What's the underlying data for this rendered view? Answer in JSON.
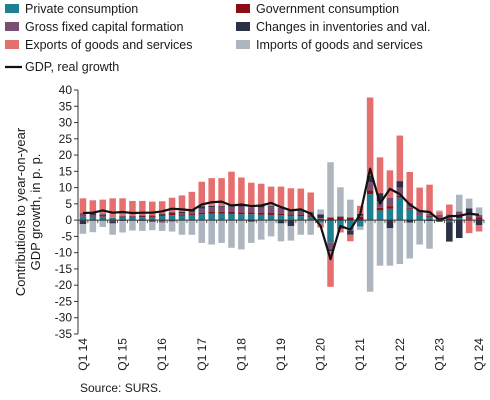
{
  "chart_data": {
    "type": "bar",
    "stacked": true,
    "ylabel": "Contributions to year-on-year GDP growth, in p. p.",
    "source": "Source: SURS.",
    "ylim": [
      -35,
      40
    ],
    "ytick_step": 5,
    "grid": false,
    "legend_placement": "top",
    "xtick_labels": [
      {
        "index": 0,
        "label": "Q1 14"
      },
      {
        "index": 4,
        "label": "Q1 15"
      },
      {
        "index": 8,
        "label": "Q1 16"
      },
      {
        "index": 12,
        "label": "Q1 17"
      },
      {
        "index": 16,
        "label": "Q1 18"
      },
      {
        "index": 20,
        "label": "Q1 19"
      },
      {
        "index": 24,
        "label": "Q1 20"
      },
      {
        "index": 28,
        "label": "Q1 21"
      },
      {
        "index": 32,
        "label": "Q1 22"
      },
      {
        "index": 36,
        "label": "Q1 23"
      },
      {
        "index": 40,
        "label": "Q1 24"
      }
    ],
    "categories": [
      "Q1 14",
      "Q2 14",
      "Q3 14",
      "Q4 14",
      "Q1 15",
      "Q2 15",
      "Q3 15",
      "Q4 15",
      "Q1 16",
      "Q2 16",
      "Q3 16",
      "Q4 16",
      "Q1 17",
      "Q2 17",
      "Q3 17",
      "Q4 17",
      "Q1 18",
      "Q2 18",
      "Q3 18",
      "Q4 18",
      "Q1 19",
      "Q2 19",
      "Q3 19",
      "Q4 19",
      "Q1 20",
      "Q2 20",
      "Q3 20",
      "Q4 20",
      "Q1 21",
      "Q2 21",
      "Q3 21",
      "Q4 21",
      "Q1 22",
      "Q2 22",
      "Q3 22",
      "Q4 22",
      "Q1 23",
      "Q2 23",
      "Q3 23",
      "Q4 23",
      "Q1 24"
    ],
    "series": [
      {
        "name": "Private consumption",
        "color": "#1f7f93",
        "values": [
          1.0,
          0.8,
          0.8,
          0.7,
          0.8,
          0.8,
          0.9,
          1.0,
          1.3,
          1.5,
          1.4,
          1.6,
          1.8,
          2.0,
          2.0,
          1.9,
          1.8,
          1.8,
          1.7,
          1.6,
          1.5,
          1.3,
          1.2,
          1.0,
          -0.8,
          -6.8,
          -2.0,
          -3.0,
          -2.0,
          8.0,
          3.0,
          3.5,
          7.0,
          3.5,
          1.5,
          1.0,
          0.2,
          -0.6,
          0.6,
          0.4,
          0.2
        ]
      },
      {
        "name": "Government consumption",
        "color": "#8b0e12",
        "values": [
          -0.2,
          -0.2,
          -0.1,
          0.0,
          0.1,
          0.1,
          0.2,
          0.3,
          0.4,
          0.4,
          0.4,
          0.4,
          0.5,
          0.5,
          0.6,
          0.6,
          0.6,
          0.6,
          0.6,
          0.6,
          0.5,
          0.5,
          0.5,
          0.5,
          0.4,
          0.8,
          0.8,
          0.8,
          1.0,
          1.2,
          0.8,
          0.8,
          0.5,
          0.3,
          0.2,
          0.3,
          0.5,
          0.6,
          0.6,
          0.5,
          0.6
        ]
      },
      {
        "name": "Gross fixed capital formation",
        "color": "#7b4f6f",
        "values": [
          1.2,
          0.8,
          0.5,
          -0.4,
          -0.3,
          -0.2,
          -0.3,
          -0.6,
          -0.8,
          -0.5,
          0.3,
          0.6,
          1.2,
          1.5,
          1.5,
          1.7,
          1.8,
          1.6,
          1.6,
          1.8,
          1.8,
          1.5,
          1.2,
          0.8,
          0.2,
          -2.2,
          -0.8,
          -0.3,
          0.4,
          2.5,
          2.0,
          2.5,
          2.5,
          1.5,
          1.0,
          0.6,
          1.0,
          1.2,
          1.3,
          1.2,
          0.8
        ]
      },
      {
        "name": "Changes in inventories and val.",
        "color": "#2a3147",
        "values": [
          -1.0,
          0.5,
          0.5,
          -0.6,
          0.3,
          0.3,
          0.3,
          0.2,
          0.3,
          0.5,
          0.5,
          0.6,
          0.8,
          0.4,
          0.3,
          0.7,
          0.4,
          -0.5,
          0.8,
          0.3,
          -1.0,
          -1.8,
          0.3,
          0.2,
          1.2,
          -0.5,
          0.3,
          -1.2,
          0.5,
          2.0,
          2.5,
          -2.5,
          2.0,
          -0.8,
          0.3,
          -0.3,
          -0.5,
          -6.0,
          -5.5,
          1.5,
          -1.5
        ]
      },
      {
        "name": "Exports of goods and services",
        "color": "#e56f6f",
        "values": [
          4.5,
          4.0,
          4.5,
          6.0,
          5.5,
          4.7,
          4.5,
          4.2,
          3.8,
          4.5,
          5.0,
          5.5,
          7.5,
          8.5,
          8.5,
          10.0,
          8.5,
          7.5,
          6.5,
          6.0,
          6.5,
          6.5,
          6.5,
          6.0,
          -1.5,
          -11.0,
          -1.0,
          -2.0,
          2.5,
          24.0,
          11.0,
          8.5,
          14.0,
          9.5,
          7.0,
          9.0,
          0.8,
          3.0,
          0.3,
          -4.0,
          -2.0
        ]
      },
      {
        "name": "Imports of goods and services",
        "color": "#adb6bf",
        "values": [
          -3.0,
          -3.5,
          -2.0,
          -3.5,
          -3.5,
          -3.0,
          -3.0,
          -2.5,
          -2.5,
          -3.0,
          -4.5,
          -4.5,
          -7.0,
          -7.5,
          -7.0,
          -8.5,
          -9.0,
          -6.5,
          -6.0,
          -5.0,
          -5.5,
          -4.5,
          -4.5,
          -4.5,
          1.5,
          17.0,
          9.0,
          5.5,
          -1.0,
          -22.0,
          -14.0,
          -11.5,
          -13.5,
          -11.0,
          -7.5,
          -8.5,
          0.5,
          0.0,
          5.0,
          3.0,
          2.3
        ]
      }
    ],
    "gdp_line": {
      "name": "GDP, real growth",
      "color": "#111111",
      "values": [
        2.2,
        2.3,
        3.0,
        2.3,
        2.5,
        2.2,
        2.3,
        2.3,
        2.7,
        3.5,
        3.3,
        3.0,
        4.8,
        5.5,
        5.7,
        4.5,
        4.8,
        4.3,
        4.5,
        5.3,
        4.0,
        3.0,
        3.3,
        2.0,
        -1.8,
        -12.0,
        -1.8,
        -2.9,
        1.8,
        15.8,
        5.1,
        9.6,
        8.0,
        4.8,
        2.8,
        2.5,
        0.0,
        1.2,
        1.3,
        2.0,
        1.6
      ]
    }
  }
}
